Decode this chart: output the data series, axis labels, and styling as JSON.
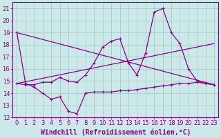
{
  "bg_color": "#cce8e8",
  "grid_color": "#aad0d0",
  "line_color": "#880088",
  "xlabel": "Windchill (Refroidissement éolien,°C)",
  "xlabel_fontsize": 7,
  "tick_fontsize": 6,
  "xlim": [
    -0.5,
    23.5
  ],
  "ylim": [
    12,
    21.5
  ],
  "yticks": [
    12,
    13,
    14,
    15,
    16,
    17,
    18,
    19,
    20,
    21
  ],
  "xticks": [
    0,
    1,
    2,
    3,
    4,
    5,
    6,
    7,
    8,
    9,
    10,
    11,
    12,
    13,
    14,
    15,
    16,
    17,
    18,
    19,
    20,
    21,
    22,
    23
  ],
  "windchill_x": [
    0,
    1,
    2,
    3,
    4,
    5,
    6,
    7,
    8,
    9,
    10,
    11,
    12,
    13,
    14,
    15,
    16,
    17,
    18,
    19,
    20,
    21,
    22,
    23
  ],
  "windchill_y": [
    19.0,
    14.8,
    14.5,
    14.0,
    13.5,
    13.7,
    12.5,
    12.3,
    14.0,
    14.1,
    14.1,
    14.1,
    14.2,
    14.2,
    14.3,
    14.4,
    14.5,
    14.6,
    14.7,
    14.8,
    14.8,
    14.9,
    14.8,
    14.7
  ],
  "main_x": [
    0,
    1,
    2,
    3,
    4,
    5,
    6,
    7,
    8,
    9,
    10,
    11,
    12,
    13,
    14,
    15,
    16,
    17,
    18,
    19,
    20,
    21,
    22,
    23
  ],
  "main_y": [
    14.8,
    14.7,
    14.7,
    14.9,
    14.9,
    15.3,
    15.0,
    14.9,
    15.5,
    16.5,
    17.8,
    18.3,
    18.5,
    16.5,
    15.5,
    17.3,
    20.7,
    21.0,
    19.0,
    18.1,
    16.0,
    15.0,
    14.8,
    14.7
  ],
  "trend1_x": [
    0,
    23
  ],
  "trend1_y": [
    14.8,
    18.1
  ],
  "trend2_x": [
    0,
    23
  ],
  "trend2_y": [
    19.0,
    14.7
  ]
}
